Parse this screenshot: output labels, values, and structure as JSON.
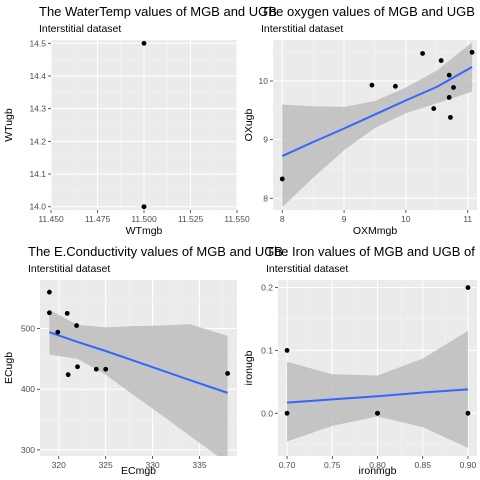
{
  "chart_data": [
    {
      "type": "scatter",
      "title": "The WaterTemp values of MGB and UGB",
      "subtitle": "Interstitial dataset",
      "xlabel": "WTmgb",
      "ylabel": "WTugb",
      "xlim": [
        11.45,
        11.55
      ],
      "ylim": [
        13.99,
        14.51
      ],
      "xticks": [
        "11.450",
        "11.475",
        "11.500",
        "11.525",
        "11.550"
      ],
      "yticks": [
        "14.0",
        "14.1",
        "14.2",
        "14.3",
        "14.4",
        "14.5"
      ],
      "grid": true,
      "points": [
        {
          "x": 11.5,
          "y": 14.5
        },
        {
          "x": 11.5,
          "y": 14.0
        },
        {
          "x": 11.5,
          "y": 14.0
        }
      ],
      "trend": null
    },
    {
      "type": "scatter",
      "title": "The oxygen values of MGB and UGB",
      "subtitle": "Interstitial dataset",
      "xlabel": "OXMmgb",
      "ylabel": "OXugb",
      "xlim": [
        7.85,
        11.15
      ],
      "ylim": [
        7.8,
        10.7
      ],
      "xticks": [
        "8",
        "9",
        "10",
        "11"
      ],
      "yticks": [
        "8",
        "9",
        "10"
      ],
      "grid": true,
      "points": [
        {
          "x": 8.0,
          "y": 8.33
        },
        {
          "x": 9.45,
          "y": 9.93
        },
        {
          "x": 9.83,
          "y": 9.91
        },
        {
          "x": 10.27,
          "y": 10.47
        },
        {
          "x": 10.45,
          "y": 9.53
        },
        {
          "x": 10.57,
          "y": 10.35
        },
        {
          "x": 10.7,
          "y": 10.1
        },
        {
          "x": 10.7,
          "y": 9.72
        },
        {
          "x": 10.72,
          "y": 9.38
        },
        {
          "x": 10.77,
          "y": 9.89
        },
        {
          "x": 11.07,
          "y": 10.49
        }
      ],
      "trend": {
        "x": [
          8.0,
          8.5,
          9.0,
          9.5,
          10.0,
          10.5,
          11.07
        ],
        "y": [
          8.72,
          8.96,
          9.19,
          9.43,
          9.67,
          9.9,
          10.24
        ],
        "lower": [
          7.85,
          8.35,
          8.82,
          9.2,
          9.45,
          9.62,
          9.82
        ],
        "upper": [
          9.6,
          9.57,
          9.56,
          9.66,
          9.89,
          10.18,
          10.66
        ]
      }
    },
    {
      "type": "scatter",
      "title": "The E.Conductivity values of MGB and UGB",
      "subtitle": "Interstitial dataset",
      "xlabel": "ECmgb",
      "ylabel": "ECugb",
      "xlim": [
        318.0,
        339.0
      ],
      "ylim": [
        290,
        580
      ],
      "xticks": [
        "320",
        "325",
        "330",
        "335"
      ],
      "yticks": [
        "300",
        "400",
        "500"
      ],
      "grid": true,
      "points": [
        {
          "x": 319.0,
          "y": 560
        },
        {
          "x": 319.0,
          "y": 526
        },
        {
          "x": 319.9,
          "y": 494
        },
        {
          "x": 320.9,
          "y": 525
        },
        {
          "x": 321.0,
          "y": 424
        },
        {
          "x": 321.9,
          "y": 505
        },
        {
          "x": 322.0,
          "y": 437
        },
        {
          "x": 324.0,
          "y": 433
        },
        {
          "x": 325.0,
          "y": 433
        },
        {
          "x": 338.0,
          "y": 426
        }
      ],
      "trend": {
        "x": [
          319.0,
          322.0,
          325.0,
          328.0,
          331.0,
          334.0,
          338.0
        ],
        "y": [
          494,
          478,
          463,
          447,
          431,
          415,
          394
        ],
        "lower": [
          457,
          450,
          424,
          390,
          357,
          323,
          278
        ],
        "upper": [
          531,
          506,
          502,
          504,
          505,
          507,
          488
        ]
      }
    },
    {
      "type": "scatter",
      "title": "The Iron values of MGB and UGB of",
      "subtitle": "Interstitial dataset",
      "xlabel": "ironmgb",
      "ylabel": "ironugb",
      "xlim": [
        0.69,
        0.91
      ],
      "ylim": [
        -0.068,
        0.212
      ],
      "xticks": [
        "0.70",
        "0.75",
        "0.80",
        "0.85",
        "0.90"
      ],
      "yticks": [
        "0.0",
        "0.1",
        "0.2"
      ],
      "grid": true,
      "points": [
        {
          "x": 0.7,
          "y": 0.1
        },
        {
          "x": 0.7,
          "y": 0.0
        },
        {
          "x": 0.8,
          "y": 0.0
        },
        {
          "x": 0.8,
          "y": 0.0
        },
        {
          "x": 0.9,
          "y": 0.2
        },
        {
          "x": 0.9,
          "y": 0.0
        }
      ],
      "trend": {
        "x": [
          0.7,
          0.75,
          0.8,
          0.85,
          0.9
        ],
        "y": [
          0.017,
          0.022,
          0.027,
          0.033,
          0.038
        ],
        "lower": [
          -0.045,
          -0.02,
          -0.005,
          -0.022,
          -0.055
        ],
        "upper": [
          0.082,
          0.062,
          0.06,
          0.087,
          0.131
        ]
      }
    }
  ],
  "colors": {
    "panel_bg": "#ebebeb",
    "grid_major": "#ffffff",
    "point": "#000000",
    "trend_line": "#3366ff",
    "ribbon": "#bdbdbd"
  }
}
